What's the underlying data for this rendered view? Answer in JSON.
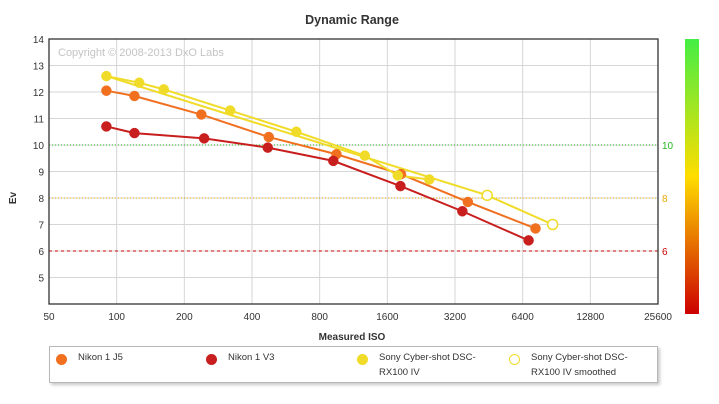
{
  "chart_data": {
    "type": "line",
    "title": "Dynamic Range",
    "watermark": "Copyright © 2008-2013 DxO Labs",
    "xlabel": "Measured ISO",
    "ylabel": "Ev",
    "x_scale": "log2",
    "xlim": [
      50,
      25600
    ],
    "ylim": [
      4,
      14
    ],
    "x_ticks": [
      50,
      100,
      200,
      400,
      800,
      1600,
      3200,
      6400,
      12800,
      25600
    ],
    "x_tick_labels": [
      "50",
      "100",
      "200",
      "400",
      "800",
      "1600",
      "3200",
      "6400",
      "12800",
      "25600"
    ],
    "y_ticks": [
      5,
      6,
      7,
      8,
      9,
      10,
      11,
      12,
      13,
      14
    ],
    "y_tick_labels": [
      "5",
      "6",
      "7",
      "8",
      "9",
      "10",
      "11",
      "12",
      "13",
      "14"
    ],
    "grid": true,
    "series": [
      {
        "name": "Nikon 1 J5",
        "color": "#f07020",
        "hollow": false,
        "x": [
          90,
          120,
          238,
          475,
          950,
          1840,
          3650,
          7300
        ],
        "y": [
          12.05,
          11.85,
          11.15,
          10.3,
          9.65,
          8.9,
          7.85,
          6.85
        ]
      },
      {
        "name": "Nikon 1 V3",
        "color": "#c81e1e",
        "hollow": false,
        "x": [
          90,
          120,
          245,
          470,
          920,
          1830,
          3450,
          6800
        ],
        "y": [
          10.7,
          10.45,
          10.25,
          9.9,
          9.4,
          8.45,
          7.5,
          6.4
        ]
      },
      {
        "name": "Sony Cyber-shot DSC-RX100 IV",
        "color": "#f0dc28",
        "hollow": false,
        "x": [
          90,
          126,
          162,
          320,
          630,
          1270,
          1780,
          2460
        ],
        "y": [
          12.6,
          12.35,
          12.1,
          11.3,
          10.5,
          9.6,
          8.85,
          8.7
        ]
      },
      {
        "name": "Sony Cyber-shot DSC-RX100 IV smoothed",
        "color": "#f0dc28",
        "hollow": true,
        "x": [
          90,
          4450,
          8700
        ],
        "y": [
          12.6,
          8.1,
          7.0
        ]
      }
    ],
    "reference_lines": [
      {
        "value": 10,
        "label": "10",
        "color": "#22bb22",
        "style": "dotted"
      },
      {
        "value": 8,
        "label": "8",
        "color": "#e8a800",
        "style": "dotted"
      },
      {
        "value": 6,
        "label": "6",
        "color": "#cc0000",
        "style": "dashed"
      }
    ],
    "color_scale": {
      "top": "#44ee44",
      "middle": "#ffdd00",
      "bottom": "#cc0000"
    },
    "legend": [
      {
        "label": "Nikon 1 J5",
        "color": "#f07020",
        "hollow": false
      },
      {
        "label": "Nikon 1 V3",
        "color": "#c81e1e",
        "hollow": false
      },
      {
        "label": "Sony Cyber-shot DSC-RX100 IV",
        "color": "#f0dc28",
        "hollow": false
      },
      {
        "label": "Sony Cyber-shot DSC-RX100 IV smoothed",
        "color": "#f0dc28",
        "hollow": true
      }
    ]
  }
}
